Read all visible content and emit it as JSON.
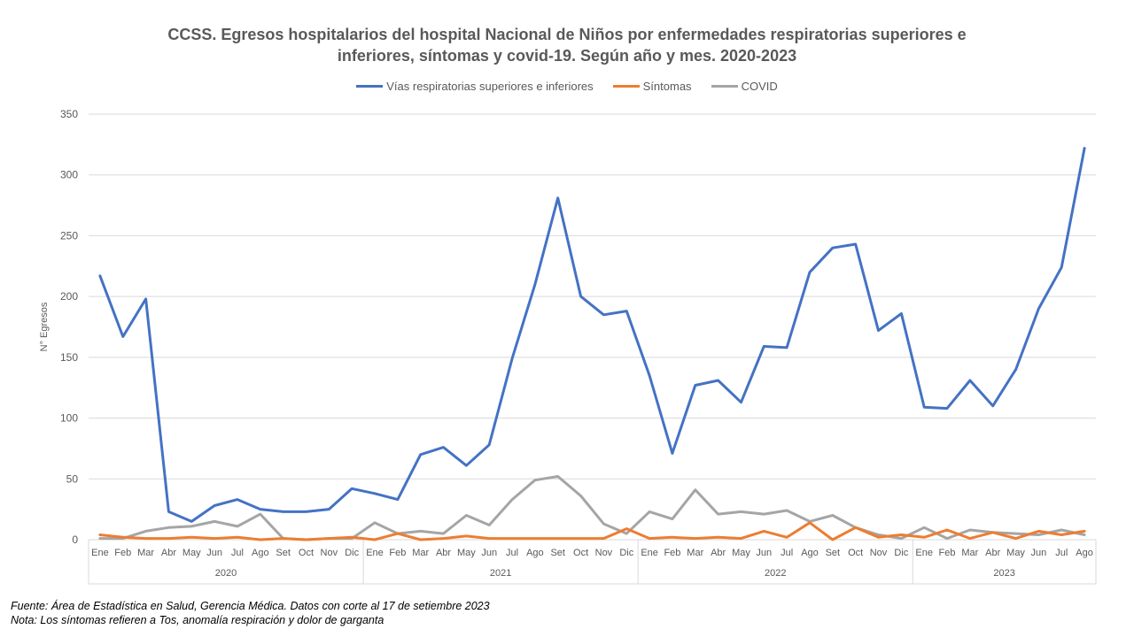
{
  "chart_data": {
    "type": "line",
    "title": "CCSS. Egresos hospitalarios  del hospital  Nacional de Niños por enfermedades respiratorias  superiores  e inferiores, síntomas  y covid-19. Según año y mes. 2020-2023",
    "title_lines": [
      "CCSS. Egresos hospitalarios  del hospital  Nacional de Niños por enfermedades respiratorias  superiores  e",
      "inferiores, síntomas  y covid-19. Según año y mes. 2020-2023"
    ],
    "ylabel": "N° Egresos",
    "xlabel": "",
    "ylim": [
      0,
      350
    ],
    "yticks": [
      0,
      50,
      100,
      150,
      200,
      250,
      300,
      350
    ],
    "grid": true,
    "legend_position": "top",
    "years": [
      {
        "label": "2020",
        "months": [
          "Ene",
          "Feb",
          "Mar",
          "Abr",
          "May",
          "Jun",
          "Jul",
          "Ago",
          "Set",
          "Oct",
          "Nov",
          "Dic"
        ]
      },
      {
        "label": "2021",
        "months": [
          "Ene",
          "Feb",
          "Mar",
          "Abr",
          "May",
          "Jun",
          "Jul",
          "Ago",
          "Set",
          "Oct",
          "Nov",
          "Dic"
        ]
      },
      {
        "label": "2022",
        "months": [
          "Ene",
          "Feb",
          "Mar",
          "Abr",
          "May",
          "Jun",
          "Jul",
          "Ago",
          "Set",
          "Oct",
          "Nov",
          "Dic"
        ]
      },
      {
        "label": "2023",
        "months": [
          "Ene",
          "Feb",
          "Mar",
          "Abr",
          "May",
          "Jun",
          "Jul",
          "Ago"
        ]
      }
    ],
    "series": [
      {
        "name": "Vías respiratorias superiores e inferiores",
        "color": "#4472C4",
        "values": [
          217,
          167,
          198,
          23,
          15,
          28,
          33,
          25,
          23,
          23,
          25,
          42,
          38,
          33,
          70,
          76,
          61,
          78,
          149,
          210,
          281,
          200,
          185,
          188,
          135,
          71,
          127,
          131,
          113,
          159,
          158,
          220,
          240,
          243,
          172,
          186,
          109,
          108,
          131,
          110,
          140,
          190,
          224,
          322
        ]
      },
      {
        "name": "Síntomas",
        "color": "#ED7D31",
        "values": [
          4,
          2,
          1,
          1,
          2,
          1,
          2,
          0,
          1,
          0,
          1,
          2,
          0,
          5,
          0,
          1,
          3,
          1,
          1,
          1,
          1,
          1,
          1,
          9,
          1,
          2,
          1,
          2,
          1,
          7,
          2,
          14,
          0,
          10,
          2,
          4,
          2,
          8,
          1,
          6,
          1,
          7,
          4,
          7
        ]
      },
      {
        "name": "COVID",
        "color": "#A5A5A5",
        "values": [
          1,
          1,
          7,
          10,
          11,
          15,
          11,
          21,
          1,
          0,
          1,
          1,
          14,
          5,
          7,
          5,
          20,
          12,
          33,
          49,
          52,
          36,
          13,
          5,
          23,
          17,
          41,
          21,
          23,
          21,
          24,
          15,
          20,
          10,
          4,
          1,
          10,
          1,
          8,
          6,
          5,
          4,
          8,
          4
        ]
      }
    ]
  },
  "notes": {
    "source": "Fuente: Área de Estadística en Salud, Gerencia Médica. Datos con corte al 17 de setiembre 2023",
    "note": "Nota: Los síntomas refieren a Tos, anomalía respiración y dolor de garganta"
  }
}
